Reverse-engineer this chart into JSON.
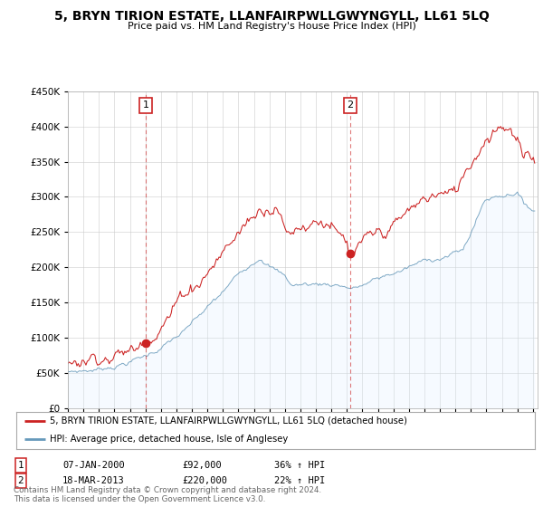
{
  "title": "5, BRYN TIRION ESTATE, LLANFAIRPWLLGWYNGYLL, LL61 5LQ",
  "subtitle": "Price paid vs. HM Land Registry's House Price Index (HPI)",
  "ylim": [
    0,
    450000
  ],
  "yticks": [
    0,
    50000,
    100000,
    150000,
    200000,
    250000,
    300000,
    350000,
    400000,
    450000
  ],
  "xlim_start": 1995.0,
  "xlim_end": 2025.3,
  "red_color": "#cc2222",
  "blue_color": "#6699bb",
  "blue_fill_color": "#ddeeff",
  "marker1_x": 2000.03,
  "marker1_y": 92000,
  "marker2_x": 2013.22,
  "marker2_y": 220000,
  "legend_label_red": "5, BRYN TIRION ESTATE, LLANFAIRPWLLGWYNGYLL, LL61 5LQ (detached house)",
  "legend_label_blue": "HPI: Average price, detached house, Isle of Anglesey",
  "table_row1": [
    "1",
    "07-JAN-2000",
    "£92,000",
    "36% ↑ HPI"
  ],
  "table_row2": [
    "2",
    "18-MAR-2013",
    "£220,000",
    "22% ↑ HPI"
  ],
  "footer": "Contains HM Land Registry data © Crown copyright and database right 2024.\nThis data is licensed under the Open Government Licence v3.0.",
  "background_color": "#ffffff",
  "grid_color": "#cccccc"
}
